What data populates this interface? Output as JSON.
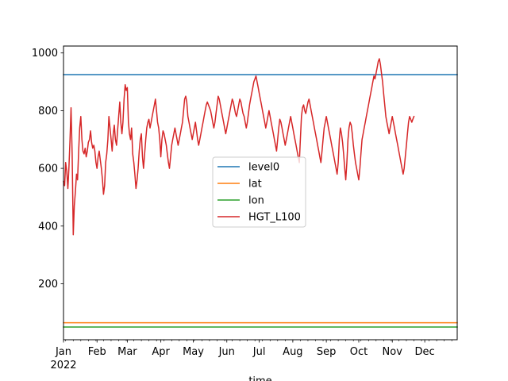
{
  "chart_data": {
    "type": "line",
    "title": "",
    "xlabel": "time",
    "ylabel": "",
    "x_start": "2022-01-01",
    "xlim": [
      "2022-01-01",
      "2022-12-31"
    ],
    "ylim": [
      6,
      1024
    ],
    "y_ticks": [
      200,
      400,
      600,
      800,
      1000
    ],
    "x_ticks": [
      {
        "date": "2022-01-01",
        "label": "Jan"
      },
      {
        "date": "2022-02-01",
        "label": "Feb"
      },
      {
        "date": "2022-03-01",
        "label": "Mar"
      },
      {
        "date": "2022-04-01",
        "label": "Apr"
      },
      {
        "date": "2022-05-01",
        "label": "May"
      },
      {
        "date": "2022-06-01",
        "label": "Jun"
      },
      {
        "date": "2022-07-01",
        "label": "Jul"
      },
      {
        "date": "2022-08-01",
        "label": "Aug"
      },
      {
        "date": "2022-09-01",
        "label": "Sep"
      },
      {
        "date": "2022-10-01",
        "label": "Oct"
      },
      {
        "date": "2022-11-01",
        "label": "Nov"
      },
      {
        "date": "2022-12-01",
        "label": "Dec"
      }
    ],
    "x_year_label": "2022",
    "grid": false,
    "legend_position": "center",
    "series": [
      {
        "name": "level0",
        "color": "#1f77b4",
        "constant": 925
      },
      {
        "name": "lat",
        "color": "#ff7f0e",
        "constant": 65
      },
      {
        "name": "lon",
        "color": "#2ca02c",
        "constant": 50
      },
      {
        "name": "HGT_L100",
        "color": "#d62728",
        "values": [
          555,
          540,
          620,
          590,
          530,
          600,
          700,
          810,
          650,
          370,
          470,
          520,
          580,
          560,
          660,
          740,
          780,
          700,
          660,
          650,
          670,
          640,
          660,
          690,
          700,
          730,
          690,
          670,
          680,
          660,
          620,
          600,
          640,
          660,
          630,
          600,
          560,
          510,
          540,
          620,
          650,
          700,
          780,
          740,
          700,
          660,
          720,
          750,
          700,
          680,
          730,
          780,
          830,
          760,
          720,
          760,
          840,
          890,
          870,
          880,
          760,
          720,
          700,
          740,
          650,
          620,
          580,
          530,
          560,
          600,
          660,
          700,
          720,
          640,
          600,
          650,
          700,
          740,
          760,
          770,
          740,
          760,
          780,
          800,
          820,
          840,
          800,
          760,
          740,
          700,
          640,
          700,
          730,
          720,
          700,
          680,
          650,
          620,
          600,
          640,
          680,
          700,
          720,
          740,
          720,
          700,
          680,
          700,
          720,
          740,
          760,
          800,
          840,
          850,
          830,
          780,
          760,
          740,
          720,
          700,
          720,
          740,
          760,
          730,
          700,
          680,
          700,
          720,
          740,
          760,
          780,
          800,
          820,
          830,
          820,
          810,
          800,
          780,
          760,
          740,
          760,
          790,
          820,
          850,
          840,
          820,
          800,
          780,
          760,
          740,
          720,
          740,
          760,
          780,
          800,
          820,
          840,
          830,
          810,
          790,
          780,
          800,
          820,
          840,
          830,
          810,
          790,
          780,
          760,
          740,
          760,
          790,
          820,
          840,
          860,
          880,
          900,
          910,
          920,
          900,
          880,
          860,
          840,
          820,
          800,
          780,
          760,
          740,
          760,
          780,
          800,
          780,
          760,
          740,
          720,
          700,
          680,
          660,
          700,
          740,
          770,
          760,
          740,
          720,
          700,
          680,
          700,
          720,
          740,
          760,
          780,
          760,
          740,
          720,
          700,
          680,
          660,
          640,
          620,
          700,
          780,
          810,
          820,
          800,
          790,
          810,
          830,
          840,
          820,
          800,
          780,
          760,
          740,
          720,
          700,
          680,
          660,
          640,
          620,
          660,
          700,
          740,
          760,
          780,
          760,
          740,
          720,
          700,
          680,
          660,
          640,
          620,
          600,
          580,
          620,
          700,
          740,
          720,
          690,
          650,
          600,
          560,
          620,
          700,
          740,
          760,
          750,
          720,
          680,
          650,
          620,
          600,
          580,
          560,
          600,
          650,
          700,
          720,
          740,
          760,
          780,
          800,
          820,
          840,
          860,
          880,
          900,
          920,
          910,
          930,
          950,
          970,
          980,
          960,
          930,
          900,
          860,
          820,
          780,
          760,
          740,
          720,
          740,
          760,
          780,
          760,
          740,
          720,
          700,
          680,
          660,
          640,
          620,
          600,
          580,
          600,
          640,
          680,
          720,
          760,
          780,
          770,
          760,
          770,
          780
        ]
      }
    ]
  }
}
